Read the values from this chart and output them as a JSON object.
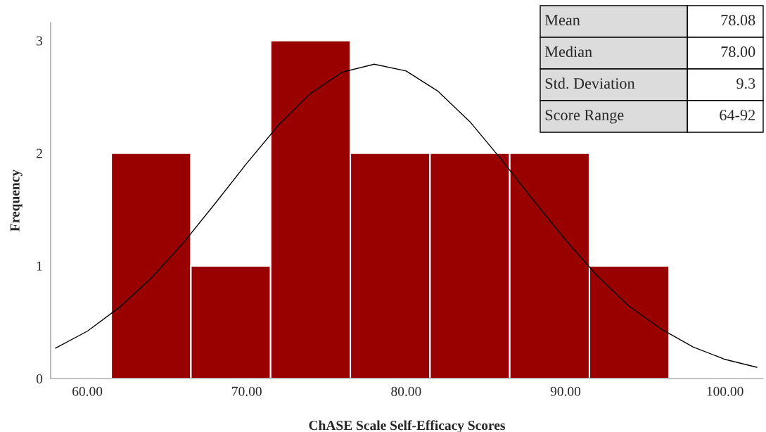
{
  "chart_data": {
    "type": "histogram",
    "xlabel": "ChASE Scale Self-Efficacy Scores",
    "ylabel": "Frequency",
    "bins": [
      61.5,
      66.5,
      71.5,
      76.5,
      81.5,
      86.5,
      91.5,
      96.5
    ],
    "values": [
      2,
      1,
      3,
      2,
      2,
      2,
      1
    ],
    "color": "#990000",
    "series": [
      {
        "type": "line",
        "color": "#000000",
        "x": [
          58,
          60,
          62,
          64,
          66,
          68,
          70,
          72,
          74,
          76,
          78,
          80,
          82,
          84,
          86,
          88,
          90,
          92,
          94,
          96,
          98,
          100,
          102
        ],
        "values": [
          0.27,
          0.42,
          0.63,
          0.89,
          1.2,
          1.55,
          1.91,
          2.25,
          2.53,
          2.72,
          2.79,
          2.73,
          2.55,
          2.28,
          1.94,
          1.58,
          1.23,
          0.91,
          0.64,
          0.44,
          0.28,
          0.17,
          0.1
        ]
      }
    ],
    "xlim": [
      57.7,
      102.4
    ],
    "ylim": [
      0,
      3.16
    ],
    "xticks": [
      {
        "value": 60,
        "label": "60.00"
      },
      {
        "value": 70,
        "label": "70.00"
      },
      {
        "value": 80,
        "label": "80.00"
      },
      {
        "value": 90,
        "label": "90.00"
      },
      {
        "value": 100,
        "label": "100.00"
      }
    ],
    "yticks": [
      0,
      1,
      2,
      3
    ],
    "grid": false,
    "annotations": [
      "Mean",
      "78.08",
      "Median",
      "78.00",
      "Std. Deviation",
      "9.3",
      "Score Range",
      "64-92"
    ]
  }
}
